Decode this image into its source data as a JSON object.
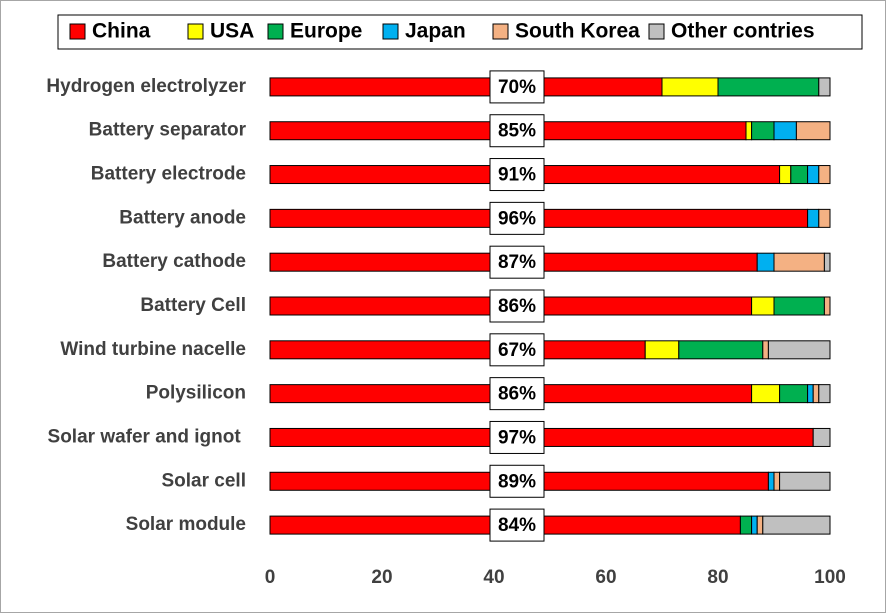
{
  "chart_data": {
    "type": "stacked-barh",
    "categories": [
      "Hydrogen electrolyzer",
      "Battery separator",
      "Battery electrode",
      "Battery anode",
      "Battery cathode",
      "Battery Cell",
      "Wind turbine nacelle",
      "Polysilicon",
      "Solar wafer and ignot ",
      "Solar cell",
      "Solar module"
    ],
    "series": [
      {
        "name": "China",
        "color": "#ff0000",
        "values": [
          70,
          85,
          91,
          96,
          87,
          86,
          67,
          86,
          97,
          89,
          84
        ],
        "value_labels": [
          "70%",
          "85%",
          "91%",
          "96%",
          "87%",
          "86%",
          "67%",
          "86%",
          "97%",
          "89%",
          "84%"
        ]
      },
      {
        "name": "USA",
        "color": "#ffff00",
        "values": [
          10,
          1,
          2,
          0,
          0,
          4,
          6,
          5,
          0,
          0,
          0
        ]
      },
      {
        "name": "Europe",
        "color": "#00b050",
        "values": [
          18,
          4,
          3,
          0,
          0,
          9,
          15,
          5,
          0,
          0,
          2
        ]
      },
      {
        "name": "Japan",
        "color": "#00b0f0",
        "values": [
          0,
          4,
          2,
          2,
          3,
          0,
          0,
          1,
          0,
          1,
          1
        ]
      },
      {
        "name": "South Korea",
        "color": "#f4b183",
        "values": [
          0,
          6,
          2,
          2,
          9,
          1,
          1,
          1,
          0,
          1,
          1
        ]
      },
      {
        "name": "Other contries",
        "color": "#c0c0c0",
        "values": [
          2,
          0,
          0,
          0,
          1,
          0,
          11,
          2,
          3,
          9,
          12
        ]
      }
    ],
    "xlim": [
      0,
      100
    ],
    "xticks": [
      0,
      20,
      40,
      60,
      80,
      100
    ],
    "grid": false,
    "legend": "top"
  }
}
